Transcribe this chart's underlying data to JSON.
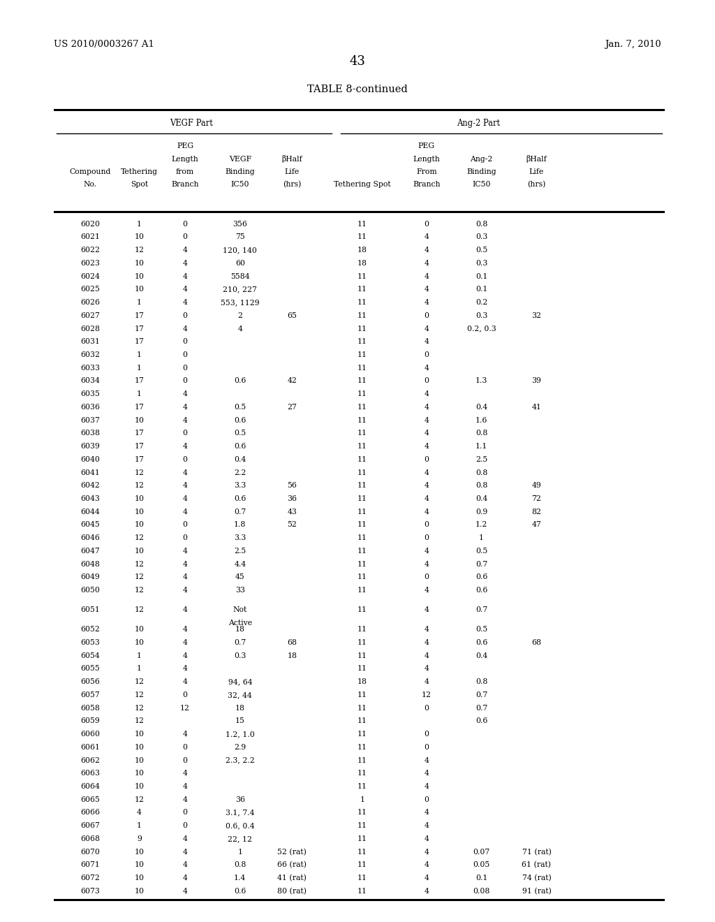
{
  "header_left": "US 2010/0003267 A1",
  "header_right": "Jan. 7, 2010",
  "page_number": "43",
  "table_title": "TABLE 8-continued",
  "vegf_part_label": "VEGF Part",
  "ang2_part_label": "Ang-2 Part",
  "rows": [
    [
      "6020",
      "1",
      "0",
      "356",
      "",
      "11",
      "0",
      "0.8",
      ""
    ],
    [
      "6021",
      "10",
      "0",
      "75",
      "",
      "11",
      "4",
      "0.3",
      ""
    ],
    [
      "6022",
      "12",
      "4",
      "120, 140",
      "",
      "18",
      "4",
      "0.5",
      ""
    ],
    [
      "6023",
      "10",
      "4",
      "60",
      "",
      "18",
      "4",
      "0.3",
      ""
    ],
    [
      "6024",
      "10",
      "4",
      "5584",
      "",
      "11",
      "4",
      "0.1",
      ""
    ],
    [
      "6025",
      "10",
      "4",
      "210, 227",
      "",
      "11",
      "4",
      "0.1",
      ""
    ],
    [
      "6026",
      "1",
      "4",
      "553, 1129",
      "",
      "11",
      "4",
      "0.2",
      ""
    ],
    [
      "6027",
      "17",
      "0",
      "2",
      "65",
      "11",
      "0",
      "0.3",
      "32"
    ],
    [
      "6028",
      "17",
      "4",
      "4",
      "",
      "11",
      "4",
      "0.2, 0.3",
      ""
    ],
    [
      "6031",
      "17",
      "0",
      "",
      "",
      "11",
      "4",
      "",
      ""
    ],
    [
      "6032",
      "1",
      "0",
      "",
      "",
      "11",
      "0",
      "",
      ""
    ],
    [
      "6033",
      "1",
      "0",
      "",
      "",
      "11",
      "4",
      "",
      ""
    ],
    [
      "6034",
      "17",
      "0",
      "0.6",
      "42",
      "11",
      "0",
      "1.3",
      "39"
    ],
    [
      "6035",
      "1",
      "4",
      "",
      "",
      "11",
      "4",
      "",
      ""
    ],
    [
      "6036",
      "17",
      "4",
      "0.5",
      "27",
      "11",
      "4",
      "0.4",
      "41"
    ],
    [
      "6037",
      "10",
      "4",
      "0.6",
      "",
      "11",
      "4",
      "1.6",
      ""
    ],
    [
      "6038",
      "17",
      "0",
      "0.5",
      "",
      "11",
      "4",
      "0.8",
      ""
    ],
    [
      "6039",
      "17",
      "4",
      "0.6",
      "",
      "11",
      "4",
      "1.1",
      ""
    ],
    [
      "6040",
      "17",
      "0",
      "0.4",
      "",
      "11",
      "0",
      "2.5",
      ""
    ],
    [
      "6041",
      "12",
      "4",
      "2.2",
      "",
      "11",
      "4",
      "0.8",
      ""
    ],
    [
      "6042",
      "12",
      "4",
      "3.3",
      "56",
      "11",
      "4",
      "0.8",
      "49"
    ],
    [
      "6043",
      "10",
      "4",
      "0.6",
      "36",
      "11",
      "4",
      "0.4",
      "72"
    ],
    [
      "6044",
      "10",
      "4",
      "0.7",
      "43",
      "11",
      "4",
      "0.9",
      "82"
    ],
    [
      "6045",
      "10",
      "0",
      "1.8",
      "52",
      "11",
      "0",
      "1.2",
      "47"
    ],
    [
      "6046",
      "12",
      "0",
      "3.3",
      "",
      "11",
      "0",
      "1",
      ""
    ],
    [
      "6047",
      "10",
      "4",
      "2.5",
      "",
      "11",
      "4",
      "0.5",
      ""
    ],
    [
      "6048",
      "12",
      "4",
      "4.4",
      "",
      "11",
      "4",
      "0.7",
      ""
    ],
    [
      "6049",
      "12",
      "4",
      "45",
      "",
      "11",
      "0",
      "0.6",
      ""
    ],
    [
      "6050",
      "12",
      "4",
      "33",
      "",
      "11",
      "4",
      "0.6",
      ""
    ],
    [
      "6051",
      "12",
      "4",
      "Not|Active",
      "",
      "11",
      "4",
      "0.7",
      ""
    ],
    [
      "6052",
      "10",
      "4",
      "18",
      "",
      "11",
      "4",
      "0.5",
      ""
    ],
    [
      "6053",
      "10",
      "4",
      "0.7",
      "68",
      "11",
      "4",
      "0.6",
      "68"
    ],
    [
      "6054",
      "1",
      "4",
      "0.3",
      "18",
      "11",
      "4",
      "0.4",
      ""
    ],
    [
      "6055",
      "1",
      "4",
      "",
      "",
      "11",
      "4",
      "",
      ""
    ],
    [
      "6056",
      "12",
      "4",
      "94, 64",
      "",
      "18",
      "4",
      "0.8",
      ""
    ],
    [
      "6057",
      "12",
      "0",
      "32, 44",
      "",
      "11",
      "12",
      "0.7",
      ""
    ],
    [
      "6058",
      "12",
      "12",
      "18",
      "",
      "11",
      "0",
      "0.7",
      ""
    ],
    [
      "6059",
      "12",
      "",
      "15",
      "",
      "11",
      "",
      "0.6",
      ""
    ],
    [
      "6060",
      "10",
      "4",
      "1.2, 1.0",
      "",
      "11",
      "0",
      "",
      ""
    ],
    [
      "6061",
      "10",
      "0",
      "2.9",
      "",
      "11",
      "0",
      "",
      ""
    ],
    [
      "6062",
      "10",
      "0",
      "2.3, 2.2",
      "",
      "11",
      "4",
      "",
      ""
    ],
    [
      "6063",
      "10",
      "4",
      "",
      "",
      "11",
      "4",
      "",
      ""
    ],
    [
      "6064",
      "10",
      "4",
      "",
      "",
      "11",
      "4",
      "",
      ""
    ],
    [
      "6065",
      "12",
      "4",
      "36",
      "",
      "1",
      "0",
      "",
      ""
    ],
    [
      "6066",
      "4",
      "0",
      "3.1, 7.4",
      "",
      "11",
      "4",
      "",
      ""
    ],
    [
      "6067",
      "1",
      "0",
      "0.6, 0.4",
      "",
      "11",
      "4",
      "",
      ""
    ],
    [
      "6068",
      "9",
      "4",
      "22, 12",
      "",
      "11",
      "4",
      "",
      ""
    ],
    [
      "6070",
      "10",
      "4",
      "1",
      "52 (rat)",
      "11",
      "4",
      "0.07",
      "71 (rat)"
    ],
    [
      "6071",
      "10",
      "4",
      "0.8",
      "66 (rat)",
      "11",
      "4",
      "0.05",
      "61 (rat)"
    ],
    [
      "6072",
      "10",
      "4",
      "1.4",
      "41 (rat)",
      "11",
      "4",
      "0.1",
      "74 (rat)"
    ],
    [
      "6073",
      "10",
      "4",
      "0.6",
      "80 (rat)",
      "11",
      "4",
      "0.08",
      "91 (rat)"
    ]
  ],
  "background_color": "#ffffff",
  "text_color": "#000000",
  "font_size": 7.8,
  "header_font_size": 9.5,
  "title_font_size": 10.5,
  "page_num_fontsize": 13
}
